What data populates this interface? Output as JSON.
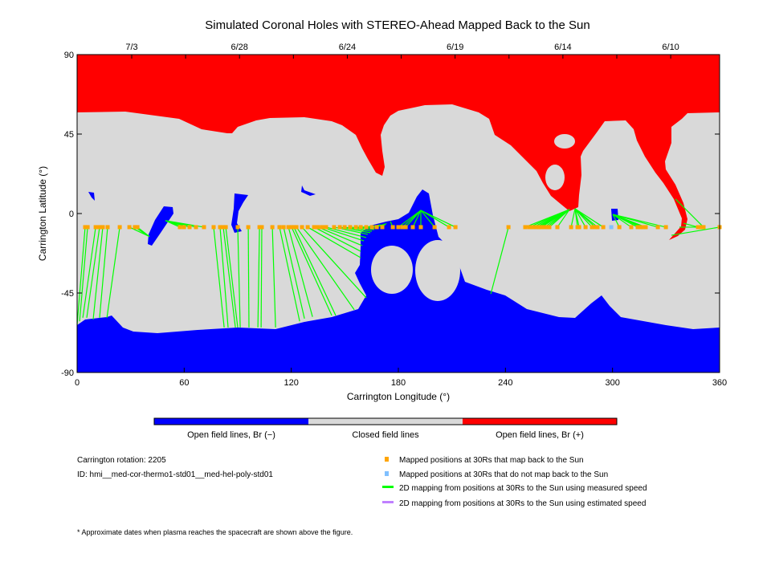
{
  "chart_data": {
    "type": "map",
    "title": "Simulated Coronal Holes with STEREO-Ahead Mapped Back to the Sun",
    "xlabel": "Carrington Longitude (°)",
    "ylabel": "Carrington Latitude (°)",
    "xlim": [
      0,
      360
    ],
    "ylim": [
      -90,
      90
    ],
    "xticks": [
      "0",
      "60",
      "120",
      "180",
      "240",
      "300",
      "360"
    ],
    "yticks": [
      "90",
      "45",
      "0",
      "-45",
      "-90"
    ],
    "top_axis": {
      "dates": [
        {
          "label": "7/3",
          "lon": 30.6
        },
        {
          "label": "6/28",
          "lon": 91
        },
        {
          "label": "6/24",
          "lon": 151.4
        },
        {
          "label": "6/19",
          "lon": 211.8
        },
        {
          "label": "6/14",
          "lon": 272.2
        },
        {
          "label": "6/10",
          "lon": 332.6
        }
      ]
    },
    "colors": {
      "open_negative": "#0000ff",
      "closed": "#d9d9d9",
      "open_positive": "#ff0000",
      "mapped": "#ffa500",
      "unmapped": "#80c0ff",
      "measured": "#00ff00",
      "estimated": "#c080ff"
    },
    "colorbar": [
      "Open field lines, Br (−)",
      "Closed field lines",
      "Open field lines, Br (+)"
    ],
    "source_lat": -7.7,
    "mappings": [
      [
        4.5,
        0,
        -63
      ],
      [
        5.9,
        1.4,
        -61
      ],
      [
        10.4,
        3.2,
        -59
      ],
      [
        12.6,
        5.4,
        -59
      ],
      [
        14.4,
        9,
        -60
      ],
      [
        17.1,
        12.6,
        -59
      ],
      [
        23.9,
        16.7,
        -59
      ],
      [
        29.3,
        40.5,
        -13
      ],
      [
        32.4,
        40.5,
        -13
      ],
      [
        33.8,
        40.5,
        -13
      ],
      [
        57.6,
        49.5,
        -4
      ],
      [
        59.9,
        49.5,
        -4
      ],
      [
        63,
        49.5,
        -4
      ],
      [
        66.6,
        49.5,
        -4
      ],
      [
        71.1,
        49.5,
        -4
      ],
      [
        76.5,
        82.4,
        -64.5
      ],
      [
        80.1,
        84.6,
        -64.5
      ],
      [
        81.9,
        88.7,
        -64.5
      ],
      [
        83.3,
        90,
        -64.5
      ],
      [
        90,
        91.4,
        -64.5
      ],
      [
        95.9,
        96.3,
        -64.5
      ],
      [
        102.2,
        101.3,
        -64.5
      ],
      [
        103.5,
        103.1,
        -64.5
      ],
      [
        109.4,
        111.2,
        -64.5
      ],
      [
        113.4,
        124.7,
        -61
      ],
      [
        115.7,
        127.4,
        -59.5
      ],
      [
        118.4,
        131.9,
        -58.5
      ],
      [
        120.2,
        142.7,
        -57.7
      ],
      [
        121.5,
        144.9,
        -57.7
      ],
      [
        122.9,
        155.3,
        -54.5
      ],
      [
        126,
        162,
        -47.7
      ],
      [
        129.2,
        158.9,
        -25
      ],
      [
        132.8,
        158.9,
        -21.4
      ],
      [
        135,
        159.8,
        -18.2
      ],
      [
        137.3,
        160.7,
        -15.5
      ],
      [
        139.5,
        162,
        -13.6
      ],
      [
        144,
        162.9,
        -11.8
      ],
      [
        147.2,
        164.3,
        -10.9
      ],
      [
        149.9,
        165.2,
        -10
      ],
      [
        153,
        166.5,
        -9.1
      ],
      [
        156.2,
        167.4,
        -8.2
      ],
      [
        158.9,
        168.8,
        -7.3
      ],
      [
        162,
        170.1,
        -6.4
      ],
      [
        165.2,
        171,
        -6.4
      ],
      [
        167.9,
        172.4,
        -5.9
      ],
      [
        171,
        173.3,
        -5.5
      ],
      [
        176.9,
        175.5,
        -4.5
      ],
      [
        180,
        192.6,
        1.8
      ],
      [
        182.3,
        192.6,
        1.8
      ],
      [
        184.1,
        192.6,
        1.8
      ],
      [
        188.1,
        192.6,
        1.8
      ],
      [
        192.6,
        192.6,
        1.8
      ],
      [
        200.3,
        192.6,
        1.8
      ],
      [
        208.4,
        192.6,
        1.8
      ],
      [
        212,
        192.6,
        1.8
      ],
      [
        241.7,
        231.8,
        -45.5
      ],
      [
        251.1,
        275.9,
        2.3
      ],
      [
        253.4,
        275.9,
        2.3
      ],
      [
        255.6,
        275.9,
        2.3
      ],
      [
        257.4,
        275.9,
        2.3
      ],
      [
        258.8,
        275.9,
        2.3
      ],
      [
        260.1,
        275.9,
        2.3
      ],
      [
        261.9,
        275.9,
        2.3
      ],
      [
        263.3,
        275.9,
        2.3
      ],
      [
        264.6,
        275.9,
        2.3
      ],
      [
        269.1,
        275.9,
        2.3
      ],
      [
        276.8,
        279,
        2.7
      ],
      [
        280.4,
        279,
        2.7
      ],
      [
        281.3,
        279,
        2.7
      ],
      [
        284.9,
        279,
        2.7
      ],
      [
        288.5,
        279,
        2.7
      ],
      [
        290.3,
        279,
        2.7
      ],
      [
        291.6,
        279,
        2.7
      ],
      [
        294.8,
        279,
        2.7
      ],
      [
        303.8,
        300.2,
        -0.5
      ],
      [
        310.5,
        300.2,
        -0.5
      ],
      [
        314.1,
        300.2,
        -0.5
      ],
      [
        315.9,
        300.2,
        -0.5
      ],
      [
        317.3,
        300.2,
        -0.5
      ],
      [
        318.6,
        300.2,
        -0.5
      ],
      [
        325.4,
        300.2,
        -0.5
      ],
      [
        329.9,
        300.2,
        -0.5
      ],
      [
        347.9,
        339.8,
        -5.5
      ],
      [
        350.1,
        337.5,
        -7.7
      ],
      [
        351,
        335.3,
        8.2
      ],
      [
        360,
        333,
        -12.3
      ]
    ],
    "unmapped_points": [
      299.3
    ]
  },
  "info": {
    "rotation": "Carrington rotation: 2205",
    "id": "ID: hmi__med-cor-thermo1-std01__med-hel-poly-std01",
    "footnote": "* Approximate dates when plasma reaches the spacecraft are shown above the figure."
  },
  "legend": [
    "Mapped positions at 30Rs that map back to the Sun",
    "Mapped positions at 30Rs that do not map back to the Sun",
    "2D mapping from positions at 30Rs to the Sun using measured speed",
    "2D mapping from positions at 30Rs to the Sun using estimated speed"
  ]
}
